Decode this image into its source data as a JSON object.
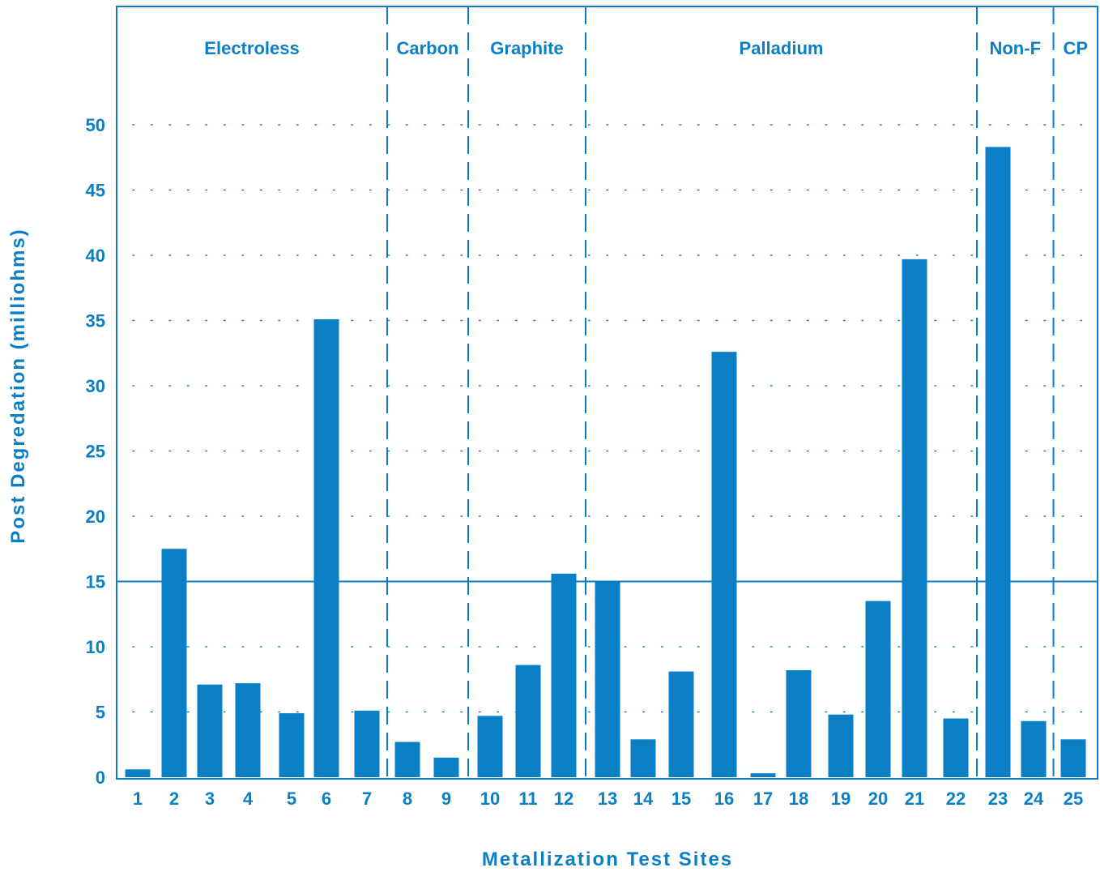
{
  "chart_data": {
    "type": "bar",
    "title": "",
    "xlabel": "Metallization Test Sites",
    "ylabel": "Post Degredation (milliohms)",
    "ylim": [
      0,
      53
    ],
    "yticks": [
      0,
      5,
      10,
      15,
      20,
      25,
      30,
      35,
      40,
      45,
      50
    ],
    "grid": "dotted horizontal",
    "reference_line": 15,
    "color": "#0b7fc6",
    "categories": [
      "1",
      "2",
      "3",
      "4",
      "5",
      "6",
      "7",
      "8",
      "9",
      "10",
      "11",
      "12",
      "13",
      "14",
      "15",
      "16",
      "17",
      "18",
      "19",
      "20",
      "21",
      "22",
      "23",
      "24",
      "25"
    ],
    "values": [
      0.6,
      17.5,
      7.1,
      7.2,
      4.9,
      35.1,
      5.1,
      2.7,
      1.5,
      4.7,
      8.6,
      15.6,
      15.0,
      2.9,
      8.1,
      32.6,
      0.3,
      8.2,
      4.8,
      13.5,
      39.7,
      4.5,
      48.3,
      4.3,
      2.9
    ],
    "groups": [
      {
        "label": "Electroless",
        "start": 0,
        "end": 6
      },
      {
        "label": "Carbon",
        "start": 7,
        "end": 8
      },
      {
        "label": "Graphite",
        "start": 9,
        "end": 11
      },
      {
        "label": "Palladium",
        "start": 12,
        "end": 21
      },
      {
        "label": "Non-F",
        "start": 22,
        "end": 23
      },
      {
        "label": "CP",
        "start": 24,
        "end": 24
      }
    ]
  }
}
